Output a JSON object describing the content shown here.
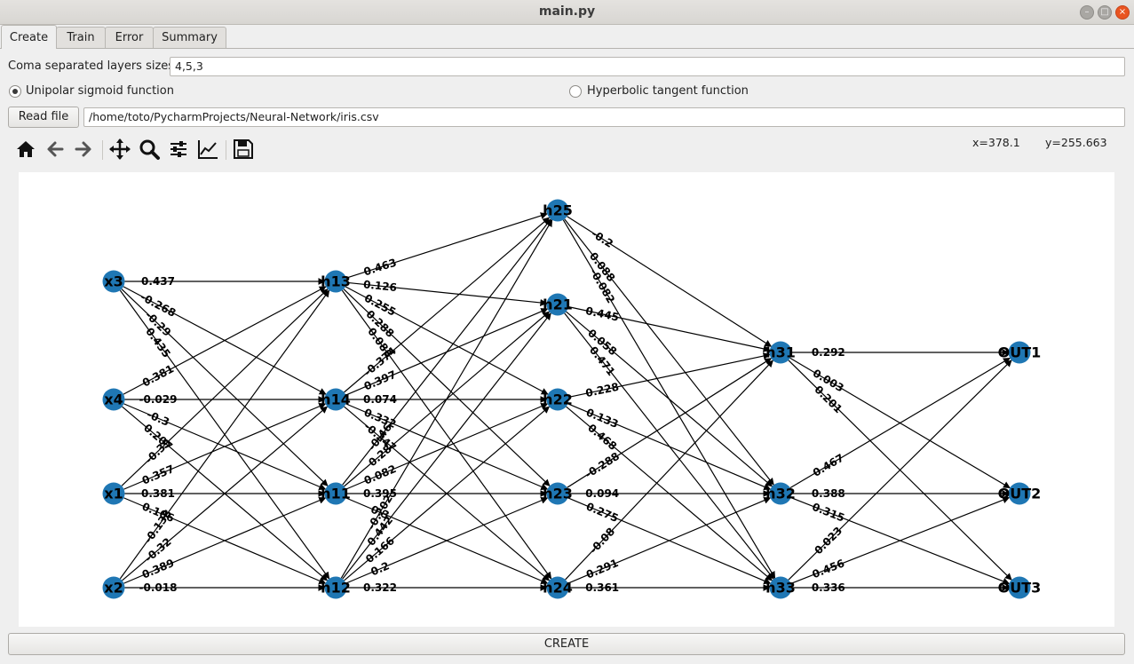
{
  "window": {
    "title": "main.py",
    "buttons": [
      "minimize-icon",
      "maximize-icon",
      "close-icon"
    ]
  },
  "tabs": [
    {
      "label": "Create",
      "active": true
    },
    {
      "label": "Train",
      "active": false
    },
    {
      "label": "Error",
      "active": false
    },
    {
      "label": "Summary",
      "active": false
    }
  ],
  "layers": {
    "label": "Coma separated layers sizes:",
    "value": "4,5,3"
  },
  "activation": {
    "unipolar_label": "Unipolar sigmoid function",
    "unipolar_selected": true,
    "tanh_label": "Hyperbolic tangent function",
    "tanh_selected": false
  },
  "file": {
    "button_label": "Read file",
    "path": "/home/toto/PycharmProjects/Neural-Network/iris.csv"
  },
  "toolbar": {
    "tools": [
      "home-icon",
      "back-icon",
      "forward-icon",
      "pan-icon",
      "zoom-icon",
      "configure-subplots-icon",
      "edit-axis-icon",
      "save-icon"
    ],
    "coord_x": "x=378.1",
    "coord_y": "y=255.663"
  },
  "network": {
    "node_color": "#1f77b4",
    "nodes": [
      {
        "id": "x3",
        "layer": 0,
        "row": 0
      },
      {
        "id": "x4",
        "layer": 0,
        "row": 1
      },
      {
        "id": "x1",
        "layer": 0,
        "row": 2
      },
      {
        "id": "x2",
        "layer": 0,
        "row": 3
      },
      {
        "id": "h13",
        "layer": 1,
        "row": 0
      },
      {
        "id": "h14",
        "layer": 1,
        "row": 1
      },
      {
        "id": "h11",
        "layer": 1,
        "row": 2
      },
      {
        "id": "h12",
        "layer": 1,
        "row": 3
      },
      {
        "id": "h25",
        "layer": 2,
        "row": 0
      },
      {
        "id": "h21",
        "layer": 2,
        "row": 1
      },
      {
        "id": "h22",
        "layer": 2,
        "row": 2
      },
      {
        "id": "h23",
        "layer": 2,
        "row": 3
      },
      {
        "id": "h24",
        "layer": 2,
        "row": 4
      },
      {
        "id": "h31",
        "layer": 3,
        "row": 0
      },
      {
        "id": "h32",
        "layer": 3,
        "row": 1
      },
      {
        "id": "h33",
        "layer": 3,
        "row": 2
      },
      {
        "id": "OUT1",
        "layer": 4,
        "row": 0
      },
      {
        "id": "OUT2",
        "layer": 4,
        "row": 1
      },
      {
        "id": "OUT3",
        "layer": 4,
        "row": 2
      }
    ],
    "edges": [
      {
        "from": "x3",
        "to": "h13",
        "w": "0.437"
      },
      {
        "from": "x3",
        "to": "h14",
        "w": "-0.268"
      },
      {
        "from": "x3",
        "to": "h11",
        "w": "-0.29"
      },
      {
        "from": "x3",
        "to": "h12",
        "w": "0.435"
      },
      {
        "from": "x4",
        "to": "h13",
        "w": "0.381"
      },
      {
        "from": "x4",
        "to": "h14",
        "w": "-0.029"
      },
      {
        "from": "x4",
        "to": "h11",
        "w": "-0.3"
      },
      {
        "from": "x4",
        "to": "h12",
        "w": "0.207"
      },
      {
        "from": "x1",
        "to": "h13",
        "w": "-0.39"
      },
      {
        "from": "x1",
        "to": "h14",
        "w": "0.357"
      },
      {
        "from": "x1",
        "to": "h11",
        "w": "0.381"
      },
      {
        "from": "x1",
        "to": "h12",
        "w": "0.106"
      },
      {
        "from": "x2",
        "to": "h13",
        "w": "-0.138"
      },
      {
        "from": "x2",
        "to": "h14",
        "w": "-0.32"
      },
      {
        "from": "x2",
        "to": "h11",
        "w": "0.389"
      },
      {
        "from": "x2",
        "to": "h12",
        "w": "-0.018"
      },
      {
        "from": "h13",
        "to": "h25",
        "w": "0.463"
      },
      {
        "from": "h13",
        "to": "h21",
        "w": "0.126"
      },
      {
        "from": "h13",
        "to": "h22",
        "w": "0.255"
      },
      {
        "from": "h13",
        "to": "h23",
        "w": "0.288"
      },
      {
        "from": "h13",
        "to": "h24",
        "w": "0.086"
      },
      {
        "from": "h14",
        "to": "h25",
        "w": "-0.374"
      },
      {
        "from": "h14",
        "to": "h21",
        "w": "0.397"
      },
      {
        "from": "h14",
        "to": "h22",
        "w": "0.074"
      },
      {
        "from": "h14",
        "to": "h23",
        "w": "0.332"
      },
      {
        "from": "h14",
        "to": "h24",
        "w": "-0.247"
      },
      {
        "from": "h11",
        "to": "h25",
        "w": "-0.46"
      },
      {
        "from": "h11",
        "to": "h21",
        "w": "0.28"
      },
      {
        "from": "h11",
        "to": "h22",
        "w": "0.082"
      },
      {
        "from": "h11",
        "to": "h23",
        "w": "0.395"
      },
      {
        "from": "h11",
        "to": "h24",
        "w": "0.3"
      },
      {
        "from": "h12",
        "to": "h25",
        "w": "-0.202"
      },
      {
        "from": "h12",
        "to": "h21",
        "w": "0.442"
      },
      {
        "from": "h12",
        "to": "h22",
        "w": "0.166"
      },
      {
        "from": "h12",
        "to": "h23",
        "w": "0.2"
      },
      {
        "from": "h12",
        "to": "h24",
        "w": "0.322"
      },
      {
        "from": "h25",
        "to": "h31",
        "w": "-0.2"
      },
      {
        "from": "h25",
        "to": "h32",
        "w": "0.088"
      },
      {
        "from": "h25",
        "to": "h33",
        "w": "-0.082"
      },
      {
        "from": "h21",
        "to": "h31",
        "w": "0.445"
      },
      {
        "from": "h21",
        "to": "h32",
        "w": "0.058"
      },
      {
        "from": "h21",
        "to": "h33",
        "w": "0.471"
      },
      {
        "from": "h22",
        "to": "h31",
        "w": "0.228"
      },
      {
        "from": "h22",
        "to": "h32",
        "w": "0.133"
      },
      {
        "from": "h22",
        "to": "h33",
        "w": "0.468"
      },
      {
        "from": "h23",
        "to": "h31",
        "w": "-0.288"
      },
      {
        "from": "h23",
        "to": "h32",
        "w": "0.094"
      },
      {
        "from": "h23",
        "to": "h33",
        "w": "0.275"
      },
      {
        "from": "h24",
        "to": "h31",
        "w": "-0.08"
      },
      {
        "from": "h24",
        "to": "h32",
        "w": "0.291"
      },
      {
        "from": "h24",
        "to": "h33",
        "w": "0.361"
      },
      {
        "from": "h31",
        "to": "OUT1",
        "w": "0.292"
      },
      {
        "from": "h31",
        "to": "OUT2",
        "w": "0.003"
      },
      {
        "from": "h31",
        "to": "OUT3",
        "w": "0.201"
      },
      {
        "from": "h32",
        "to": "OUT1",
        "w": "0.467"
      },
      {
        "from": "h32",
        "to": "OUT2",
        "w": "0.388"
      },
      {
        "from": "h32",
        "to": "OUT3",
        "w": "0.315"
      },
      {
        "from": "h33",
        "to": "OUT1",
        "w": "0.023"
      },
      {
        "from": "h33",
        "to": "OUT2",
        "w": "0.456"
      },
      {
        "from": "h33",
        "to": "OUT3",
        "w": "0.336"
      }
    ]
  },
  "create_button": "CREATE"
}
